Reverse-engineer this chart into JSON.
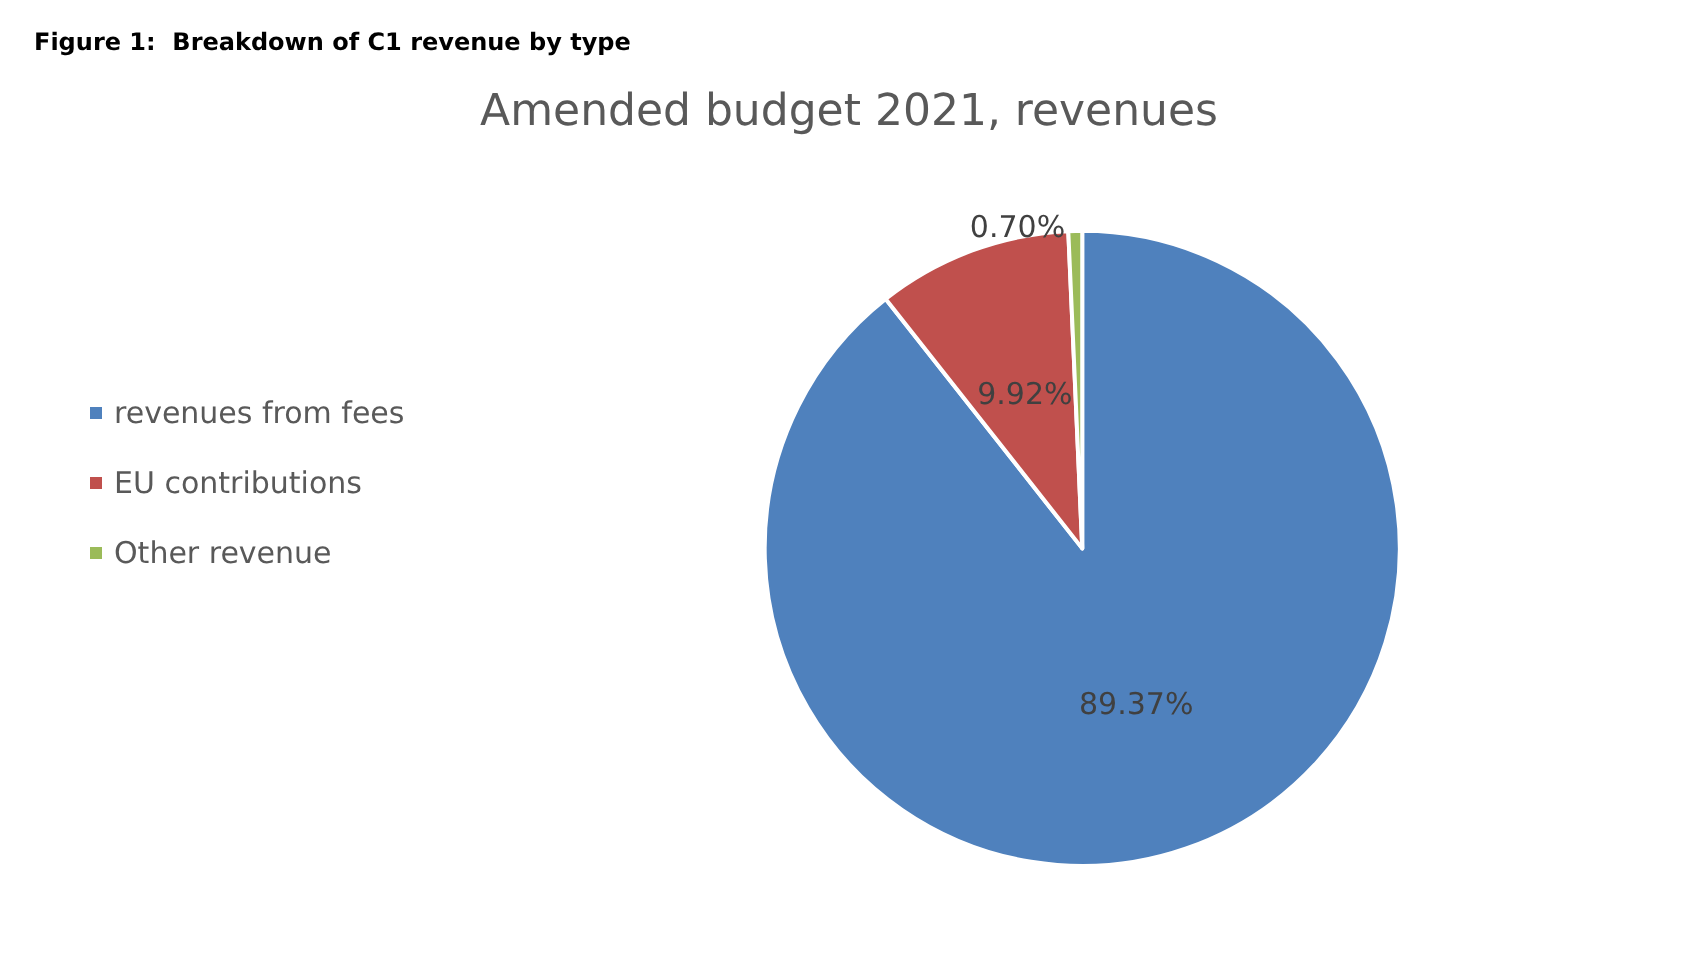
{
  "chart_data": {
    "type": "pie",
    "title": "Amended budget 2021, revenues",
    "annotations": [
      "Figure 1:  Breakdown of C1 revenue by type"
    ],
    "categories": [
      "revenues from fees",
      "EU contributions",
      "Other revenue"
    ],
    "values": [
      89.37,
      9.92,
      0.7
    ],
    "value_labels": [
      "89.37%",
      "9.92%",
      "0.70%"
    ],
    "colors": [
      "#4f81bd",
      "#c0504d",
      "#9bbb59"
    ],
    "legend": "left"
  }
}
